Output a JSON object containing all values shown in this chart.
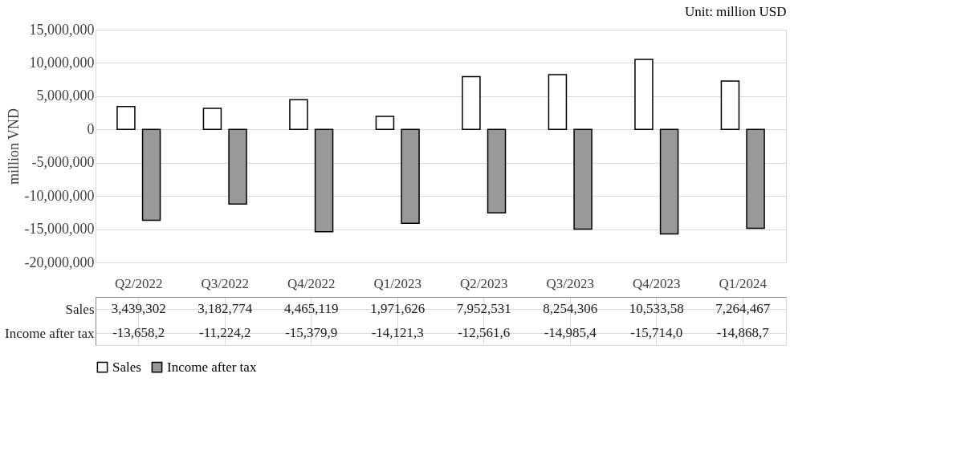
{
  "chart_data": {
    "type": "bar",
    "annotations": [
      "Unit: million USD"
    ],
    "ylabel": "million VND",
    "categories": [
      "Q2/2022",
      "Q3/2022",
      "Q4/2022",
      "Q1/2023",
      "Q2/2023",
      "Q3/2023",
      "Q4/2023",
      "Q1/2024"
    ],
    "series": [
      {
        "name": "Sales",
        "color": "#ffffff",
        "values": [
          3439302,
          3182774,
          4465119,
          1971626,
          7952531,
          8254306,
          10533580,
          7264467
        ],
        "value_labels": [
          "3,439,302",
          "3,182,774",
          "4,465,119",
          "1,971,626",
          "7,952,531",
          "8,254,306",
          "10,533,58",
          "7,264,467"
        ]
      },
      {
        "name": "Income after tax",
        "color": "#999999",
        "values": [
          -13658200,
          -11224200,
          -15379900,
          -14121300,
          -12561600,
          -14985400,
          -15714000,
          -14868700
        ],
        "value_labels": [
          "-13,658,2",
          "-11,224,2",
          "-15,379,9",
          "-14,121,3",
          "-12,561,6",
          "-14,985,4",
          "-15,714,0",
          "-14,868,7"
        ]
      }
    ],
    "ylim": [
      -20000000,
      15000000
    ],
    "yticks": [
      {
        "value": -20000000,
        "label": "-20,000,000"
      },
      {
        "value": -15000000,
        "label": "-15,000,000"
      },
      {
        "value": -10000000,
        "label": "-10,000,000"
      },
      {
        "value": -5000000,
        "label": "-5,000,000"
      },
      {
        "value": 0,
        "label": "0"
      },
      {
        "value": 5000000,
        "label": "5,000,000"
      },
      {
        "value": 10000000,
        "label": "10,000,000"
      },
      {
        "value": 15000000,
        "label": "15,000,000"
      }
    ],
    "grid": "y",
    "legend": "bottom"
  }
}
